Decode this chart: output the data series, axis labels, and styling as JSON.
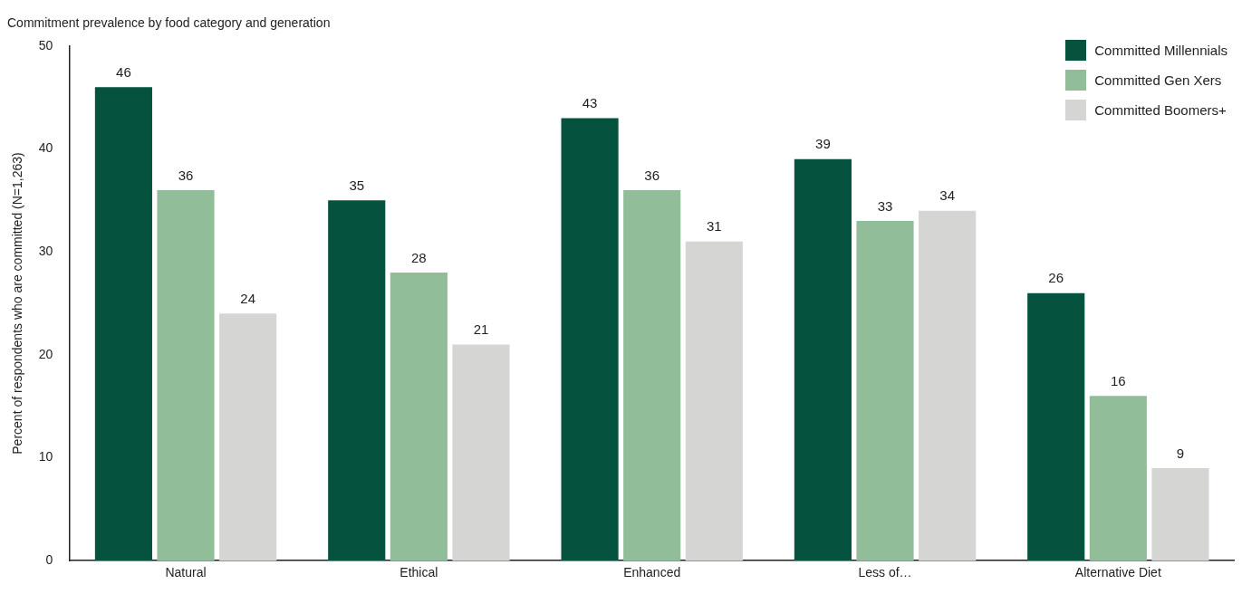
{
  "chart_data": {
    "type": "bar",
    "title": "Commitment prevalence by food category and generation",
    "ylabel": "Percent of respondents who are committed (N=1,263)",
    "categories": [
      "Natural",
      "Ethical",
      "Enhanced",
      "Less of…",
      "Alternative Diet"
    ],
    "series": [
      {
        "name": "Committed Millennials",
        "color": "#05523f",
        "values": [
          46,
          35,
          43,
          39,
          26
        ]
      },
      {
        "name": "Committed Gen Xers",
        "color": "#91bd99",
        "values": [
          36,
          28,
          36,
          33,
          16
        ]
      },
      {
        "name": "Committed Boomers+",
        "color": "#d5d6d4",
        "values": [
          24,
          21,
          31,
          34,
          9
        ]
      }
    ],
    "ylim": [
      0,
      50
    ],
    "yticks": [
      0,
      10,
      20,
      30,
      40,
      50
    ],
    "grid": false,
    "legend": "top right",
    "data_labels": true
  }
}
